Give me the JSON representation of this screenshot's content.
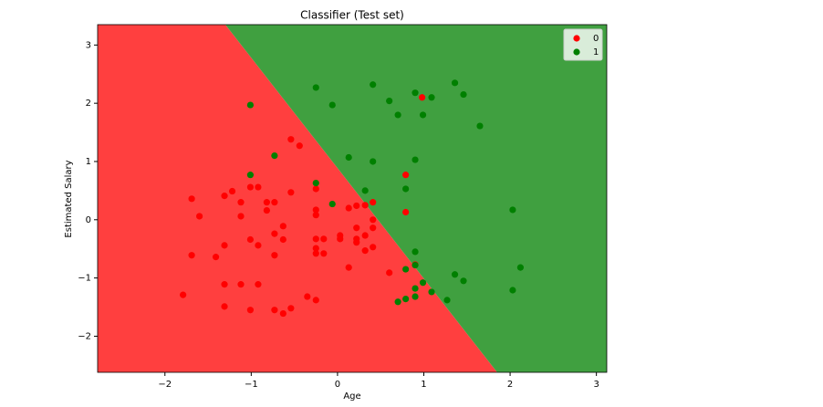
{
  "chart_data": {
    "type": "scatter",
    "title": "Classifier (Test set)",
    "xlabel": "Age",
    "ylabel": "Estimated Salary",
    "xlim": [
      -2.78,
      3.12
    ],
    "ylim": [
      -2.62,
      3.35
    ],
    "xticks": [
      {
        "value": -2,
        "label": "−2"
      },
      {
        "value": -1,
        "label": "−1"
      },
      0,
      1,
      2,
      3
    ],
    "yticks": [
      {
        "value": -2,
        "label": "−2"
      },
      {
        "value": -1,
        "label": "−1"
      },
      0,
      1,
      2,
      3
    ],
    "boundary": {
      "x": [
        -1.3,
        1.85
      ],
      "y": [
        3.35,
        -2.62
      ]
    },
    "region_colors": [
      "#ff3f3f",
      "#40a040"
    ],
    "legend": "upper right",
    "series": [
      {
        "name": "0",
        "color": "#ff0000",
        "x": [
          0.98,
          0.79,
          0.79,
          -0.54,
          -0.44,
          -1.01,
          -0.92,
          -1.22,
          -1.31,
          -1.69,
          -1.6,
          -1.12,
          -1.12,
          -0.82,
          -0.73,
          -0.82,
          -0.54,
          -0.25,
          -0.25,
          -0.25,
          -0.25,
          -0.16,
          -0.25,
          -0.25,
          -0.16,
          0.03,
          0.03,
          0.13,
          0.22,
          0.32,
          0.41,
          0.41,
          0.41,
          0.22,
          0.22,
          0.22,
          0.32,
          0.32,
          0.41,
          0.13,
          0.6,
          0.9,
          -0.63,
          -0.73,
          -0.63,
          -0.92,
          -1.01,
          -1.31,
          -1.69,
          -1.41,
          -0.73,
          -1.31,
          -1.12,
          -0.92,
          -1.79,
          -1.31,
          -1.01,
          -0.73,
          -0.63,
          -0.54,
          -0.35,
          -0.25
        ],
        "values": [
          2.1,
          0.77,
          0.13,
          1.38,
          1.27,
          0.56,
          0.56,
          0.49,
          0.41,
          0.36,
          0.06,
          0.3,
          0.06,
          0.3,
          0.3,
          0.16,
          0.47,
          0.53,
          0.17,
          0.08,
          -0.33,
          -0.33,
          -0.49,
          -0.58,
          -0.58,
          -0.27,
          -0.33,
          0.2,
          0.24,
          0.25,
          0.3,
          0.0,
          -0.14,
          -0.14,
          -0.33,
          -0.39,
          -0.27,
          -0.53,
          -0.47,
          -0.82,
          -0.91,
          -0.77,
          -0.11,
          -0.24,
          -0.34,
          -0.44,
          -0.34,
          -0.44,
          -0.61,
          -0.64,
          -0.61,
          -1.11,
          -1.11,
          -1.11,
          -1.29,
          -1.49,
          -1.55,
          -1.55,
          -1.61,
          -1.52,
          -1.32,
          -1.38
        ]
      },
      {
        "name": "1",
        "color": "#008000",
        "x": [
          -1.01,
          -0.25,
          -0.06,
          0.41,
          0.6,
          0.7,
          0.9,
          1.09,
          0.99,
          1.36,
          1.46,
          1.65,
          -0.73,
          0.13,
          0.41,
          0.9,
          -1.01,
          -0.25,
          -0.06,
          0.32,
          0.79,
          2.03,
          0.9,
          0.9,
          0.79,
          1.36,
          1.46,
          2.12,
          0.99,
          0.9,
          1.09,
          2.03,
          0.9,
          0.79,
          0.7,
          1.27
        ],
        "values": [
          1.97,
          2.27,
          1.97,
          2.32,
          2.04,
          1.8,
          2.18,
          2.1,
          1.8,
          2.35,
          2.15,
          1.61,
          1.1,
          1.07,
          1.0,
          1.03,
          0.77,
          0.63,
          0.27,
          0.5,
          0.53,
          0.17,
          -0.55,
          -0.78,
          -0.85,
          -0.94,
          -1.05,
          -0.82,
          -1.08,
          -1.18,
          -1.24,
          -1.21,
          -1.32,
          -1.36,
          -1.41,
          -1.38
        ]
      }
    ]
  }
}
